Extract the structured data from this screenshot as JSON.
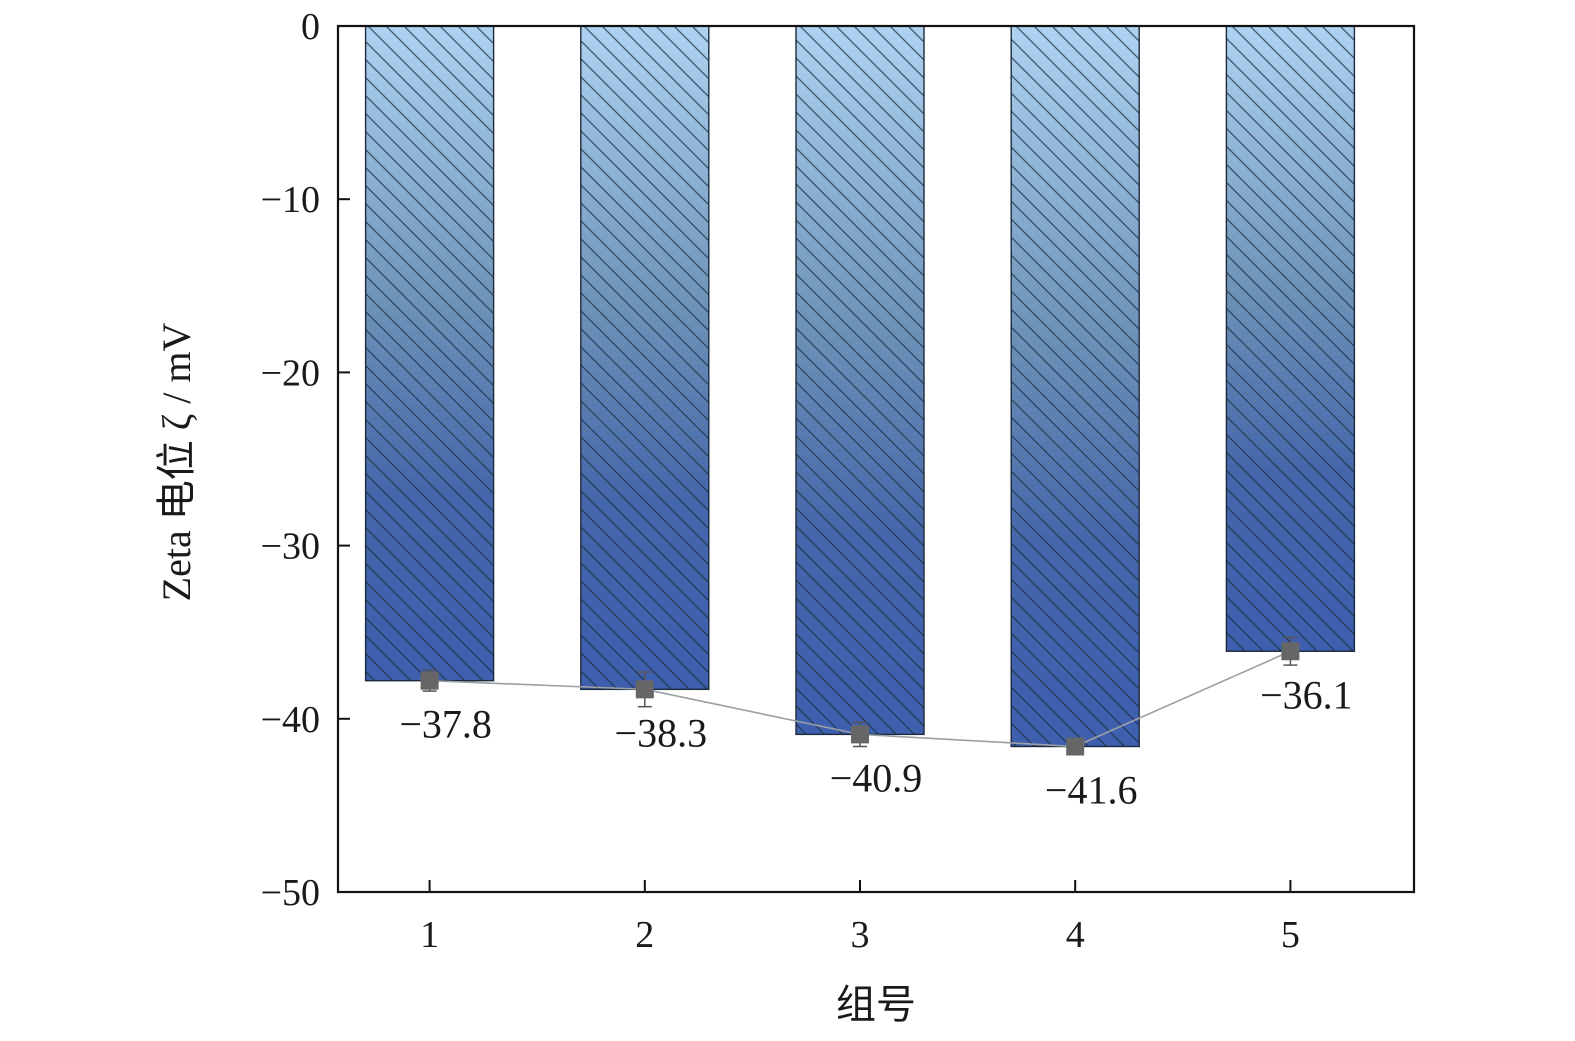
{
  "chart_data": {
    "type": "bar",
    "categories": [
      "1",
      "2",
      "3",
      "4",
      "5"
    ],
    "values": [
      -37.8,
      -38.3,
      -40.9,
      -41.6,
      -36.1
    ],
    "error": [
      0.6,
      1.0,
      0.7,
      0.4,
      0.8
    ],
    "data_labels": [
      "−37.8",
      "−38.3",
      "−40.9",
      "−41.6",
      "−36.1"
    ],
    "xlabel": "组号",
    "ylabel": "Zeta 电位 ζ / mV",
    "ylim": [
      -50,
      0
    ],
    "yticks": [
      0,
      -10,
      -20,
      -30,
      -40,
      -50
    ],
    "ytick_labels": [
      "0",
      "−10",
      "−20",
      "−30",
      "−40",
      "−50"
    ],
    "grid": false,
    "legend": "none",
    "bar_pattern": "diagonal-hatch",
    "overlay": "connecting-line-with-square-markers",
    "colors": {
      "bar_top": "#aed3f2",
      "bar_mid": "#5f86a8",
      "bar_bottom": "#3d5fae",
      "hatch": "#1c2a3c",
      "marker": "#666666",
      "line": "#9aa0a6",
      "axis": "#111111"
    }
  }
}
